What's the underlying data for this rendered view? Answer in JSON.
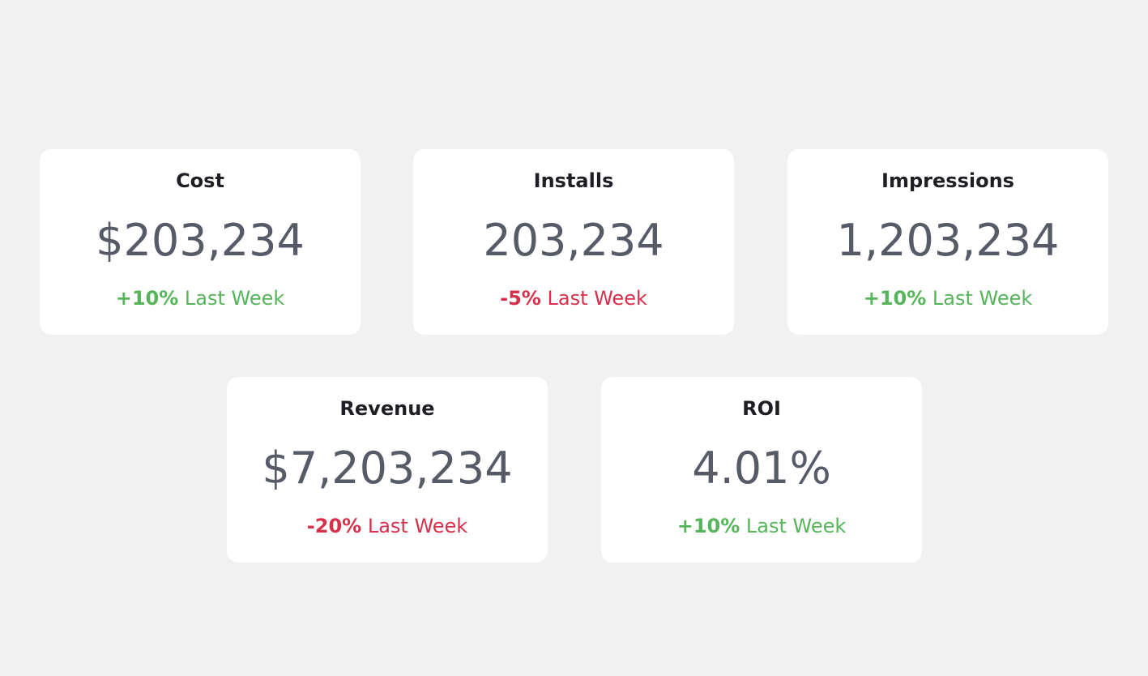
{
  "colors": {
    "background": "#f1f1f1",
    "card": "#ffffff",
    "title": "#1e1f24",
    "value": "#565b67",
    "positive": "#56b55a",
    "negative": "#d8304a"
  },
  "cards": [
    {
      "title": "Cost",
      "value": "$203,234",
      "change": "+10%",
      "period": "Last Week",
      "trend": "up"
    },
    {
      "title": "Installs",
      "value": "203,234",
      "change": "-5%",
      "period": "Last Week",
      "trend": "down"
    },
    {
      "title": "Impressions",
      "value": "1,203,234",
      "change": "+10%",
      "period": "Last Week",
      "trend": "up"
    },
    {
      "title": "Revenue",
      "value": "$7,203,234",
      "change": "-20%",
      "period": "Last Week",
      "trend": "down"
    },
    {
      "title": "ROI",
      "value": "4.01%",
      "change": "+10%",
      "period": "Last Week",
      "trend": "up"
    }
  ]
}
